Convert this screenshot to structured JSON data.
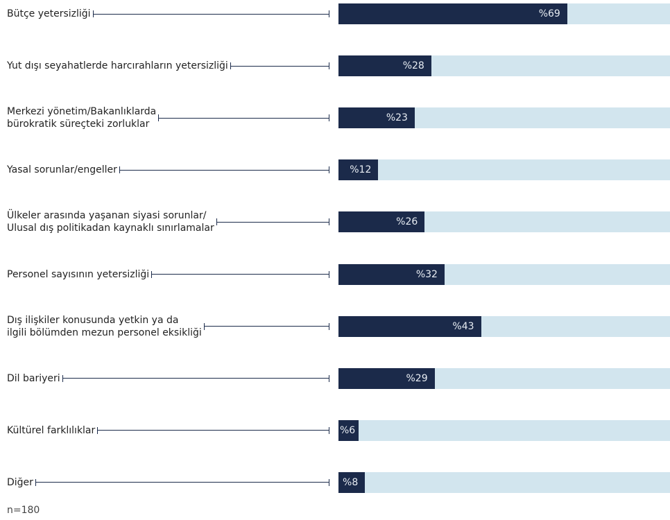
{
  "chart_data": {
    "type": "bar",
    "orientation": "horizontal",
    "categories": [
      "Bütçe yetersizliği",
      "Yut dışı seyahatlerde harcırahların yetersizliği",
      "Merkezi yönetim/Bakanlıklarda\nbürokratik süreçteki zorluklar",
      "Yasal sorunlar/engeller",
      "Ülkeler arasında yaşanan siyasi sorunlar/\nUlusal dış politikadan kaynaklı sınırlamalar",
      "Personel sayısının yetersizliği",
      "Dış ilişkiler konusunda yetkin ya da\nilgili bölümden mezun personel eksikliği",
      "Dil bariyeri",
      "Kültürel farklılıklar",
      "Diğer"
    ],
    "values": [
      69,
      28,
      23,
      12,
      26,
      32,
      43,
      29,
      6,
      8
    ],
    "value_labels": [
      "%69",
      "%28",
      "%23",
      "%12",
      "%26",
      "%32",
      "%43",
      "%29",
      "%6",
      "%8"
    ],
    "color": "#1b2a4a",
    "track_color": "#d2e5ee",
    "xlim": [
      0,
      100
    ],
    "note": "n=180"
  }
}
